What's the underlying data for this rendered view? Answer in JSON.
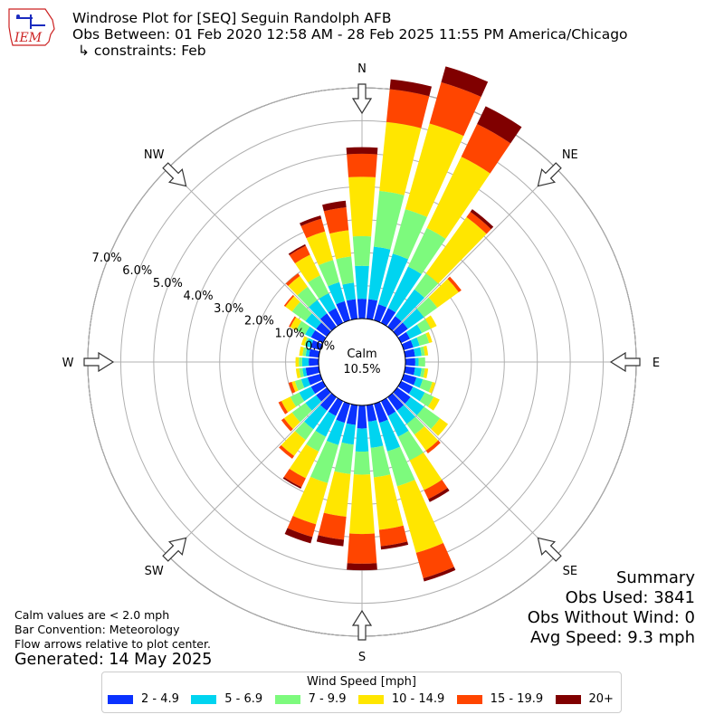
{
  "header": {
    "line1": "Windrose Plot for [SEQ] Seguin Randolph AFB",
    "line2": "Obs Between: 01 Feb 2020 12:58 AM - 28 Feb 2025 11:55 PM America/Chicago",
    "line3": "↳ constraints: Feb"
  },
  "logo": {
    "text": "IEM",
    "color": "#cc2222"
  },
  "notes": {
    "calm": "Calm values are < 2.0 mph",
    "convention": "Bar Convention: Meteorology",
    "flow": "Flow arrows relative to plot center.",
    "generated": "Generated: 14 May 2025"
  },
  "summary": {
    "title": "Summary",
    "obs_used": "Obs Used: 3841",
    "obs_without_wind": "Obs Without Wind: 0",
    "avg_speed": "Avg Speed: 9.3 mph"
  },
  "chart_data": {
    "type": "windrose",
    "title": "Windrose Plot for [SEQ] Seguin Randolph AFB",
    "calm": {
      "label": "Calm",
      "value": "10.5%"
    },
    "directions": [
      "N",
      "NE",
      "E",
      "SE",
      "S",
      "SW",
      "W",
      "NW"
    ],
    "radial_ticks": [
      "0.0%",
      "1.0%",
      "2.0%",
      "3.0%",
      "4.0%",
      "5.0%",
      "6.0%",
      "7.0%"
    ],
    "radial_max": 7.0,
    "legend_title": "Wind Speed [mph]",
    "bins": [
      {
        "label": "2 - 4.9",
        "color": "#0a32ff"
      },
      {
        "label": "5 - 6.9",
        "color": "#00d4f0"
      },
      {
        "label": "7 - 9.9",
        "color": "#7dfa7d"
      },
      {
        "label": "10 - 14.9",
        "color": "#ffe600"
      },
      {
        "label": "15 - 19.9",
        "color": "#ff4500"
      },
      {
        "label": "20+",
        "color": "#800000"
      }
    ],
    "sectors_deg": [
      0,
      10,
      20,
      30,
      40,
      50,
      60,
      70,
      80,
      90,
      100,
      110,
      120,
      130,
      140,
      150,
      160,
      170,
      180,
      190,
      200,
      210,
      220,
      230,
      240,
      250,
      260,
      270,
      280,
      290,
      300,
      310,
      320,
      330,
      340,
      350
    ],
    "cumulative_percent": [
      [
        0.6,
        1.6,
        2.5,
        4.3,
        5.0,
        5.2
      ],
      [
        0.6,
        2.2,
        3.9,
        6.0,
        7.0,
        7.3
      ],
      [
        0.5,
        2.1,
        3.5,
        6.2,
        7.5,
        8.0
      ],
      [
        0.5,
        1.9,
        3.2,
        5.6,
        6.7,
        7.3
      ],
      [
        0.4,
        1.4,
        2.0,
        4.1,
        4.3,
        4.4
      ],
      [
        0.4,
        1.0,
        1.5,
        2.3,
        2.4,
        2.4
      ],
      [
        0.3,
        0.7,
        1.0,
        1.2,
        1.2,
        1.2
      ],
      [
        0.3,
        0.5,
        0.8,
        0.9,
        0.9,
        0.9
      ],
      [
        0.3,
        0.5,
        0.6,
        0.7,
        0.7,
        0.7
      ],
      [
        0.3,
        0.4,
        0.6,
        0.6,
        0.6,
        0.6
      ],
      [
        0.3,
        0.5,
        0.6,
        0.7,
        0.7,
        0.7
      ],
      [
        0.4,
        0.6,
        0.9,
        1.0,
        1.0,
        1.0
      ],
      [
        0.4,
        0.8,
        1.1,
        1.3,
        1.3,
        1.3
      ],
      [
        0.5,
        1.0,
        1.6,
        1.9,
        1.9,
        1.9
      ],
      [
        0.5,
        1.0,
        1.4,
        2.0,
        2.1,
        2.1
      ],
      [
        0.5,
        1.2,
        2.0,
        3.0,
        3.3,
        3.4
      ],
      [
        0.6,
        1.5,
        2.6,
        4.7,
        5.5,
        5.6
      ],
      [
        0.5,
        1.3,
        2.2,
        3.8,
        4.3,
        4.4
      ],
      [
        0.7,
        1.4,
        2.1,
        3.9,
        4.8,
        5.0
      ],
      [
        0.6,
        1.2,
        2.1,
        3.4,
        4.1,
        4.3
      ],
      [
        0.6,
        1.3,
        2.5,
        3.8,
        4.2,
        4.4
      ],
      [
        0.5,
        1.2,
        1.7,
        2.6,
        2.9,
        2.95
      ],
      [
        0.5,
        1.2,
        1.6,
        2.2,
        2.3,
        2.3
      ],
      [
        0.4,
        0.8,
        1.3,
        1.6,
        1.7,
        1.7
      ],
      [
        0.4,
        0.8,
        1.1,
        1.4,
        1.5,
        1.5
      ],
      [
        0.4,
        0.6,
        0.8,
        0.9,
        1.0,
        1.0
      ],
      [
        0.4,
        0.5,
        0.6,
        0.7,
        0.7,
        0.7
      ],
      [
        0.3,
        0.5,
        0.6,
        0.7,
        0.7,
        0.7
      ],
      [
        0.3,
        0.4,
        0.5,
        0.6,
        0.6,
        0.6
      ],
      [
        0.3,
        0.45,
        0.5,
        0.6,
        0.6,
        0.6
      ],
      [
        0.4,
        0.6,
        0.9,
        1.1,
        1.15,
        1.15
      ],
      [
        0.4,
        0.8,
        1.3,
        1.55,
        1.6,
        1.6
      ],
      [
        0.5,
        1.0,
        1.5,
        1.9,
        2.0,
        2.0
      ],
      [
        0.5,
        1.0,
        1.6,
        2.3,
        2.6,
        2.65
      ],
      [
        0.6,
        1.2,
        1.9,
        2.8,
        3.2,
        3.3
      ],
      [
        0.6,
        1.1,
        1.9,
        2.7,
        3.4,
        3.6
      ]
    ]
  }
}
